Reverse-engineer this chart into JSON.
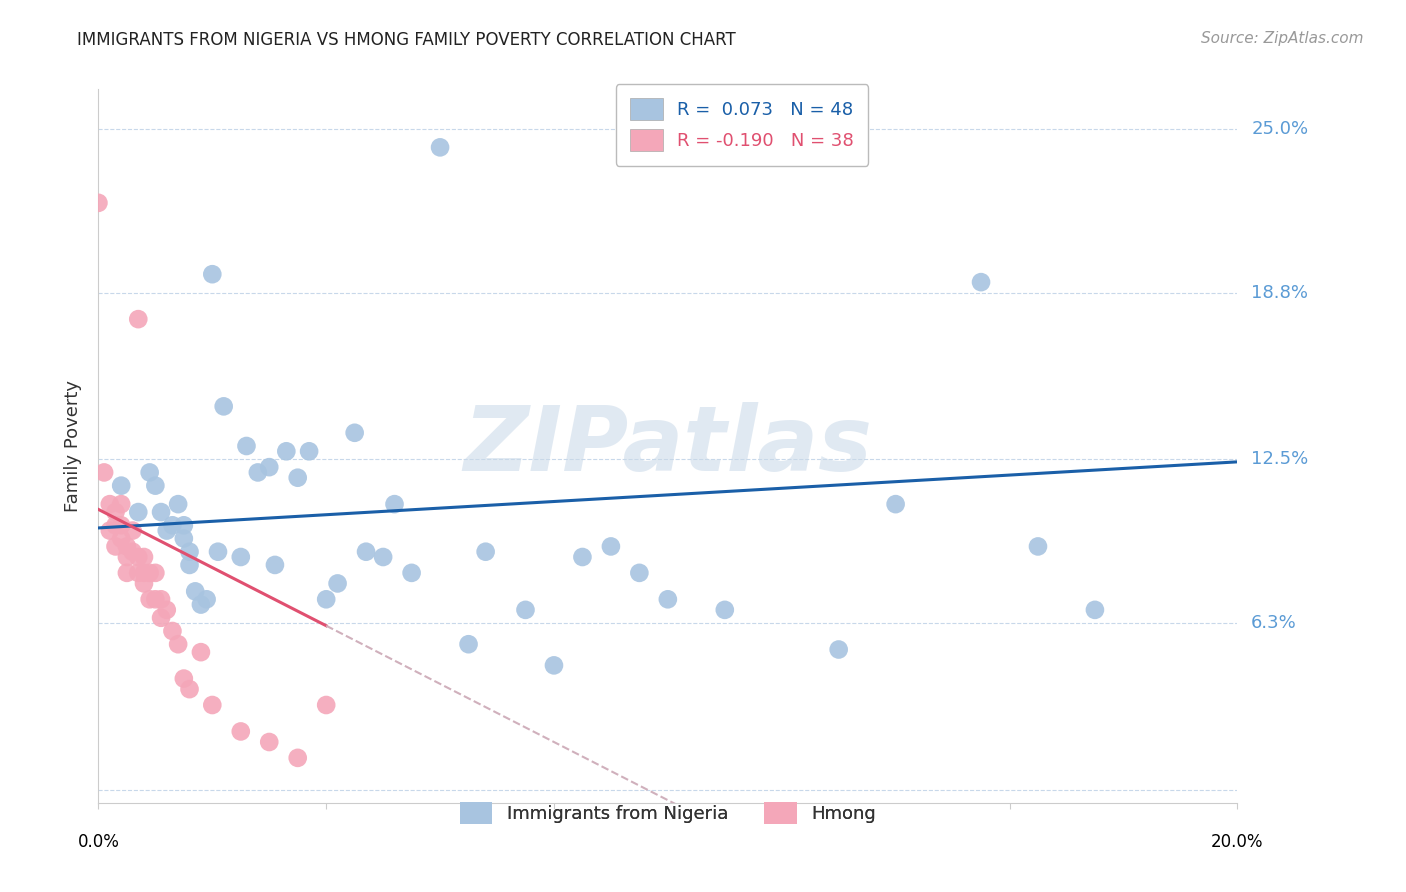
{
  "title": "IMMIGRANTS FROM NIGERIA VS HMONG FAMILY POVERTY CORRELATION CHART",
  "source": "Source: ZipAtlas.com",
  "ylabel": "Family Poverty",
  "y_ticks": [
    0.0,
    0.063,
    0.125,
    0.188,
    0.25
  ],
  "y_tick_labels": [
    "",
    "6.3%",
    "12.5%",
    "18.8%",
    "25.0%"
  ],
  "x_range": [
    0.0,
    0.2
  ],
  "y_range": [
    -0.005,
    0.265
  ],
  "nigeria_R": 0.073,
  "nigeria_N": 48,
  "hmong_R": -0.19,
  "hmong_N": 38,
  "nigeria_color": "#a8c4e0",
  "hmong_color": "#f4a7b9",
  "nigeria_line_color": "#1a5fa8",
  "hmong_line_color": "#e05070",
  "hmong_dashed_color": "#d0b0bc",
  "watermark": "ZIPatlas",
  "legend_nigeria": "Immigrants from Nigeria",
  "legend_hmong": "Hmong",
  "nigeria_x": [
    0.004,
    0.007,
    0.009,
    0.01,
    0.011,
    0.012,
    0.013,
    0.014,
    0.015,
    0.015,
    0.016,
    0.016,
    0.017,
    0.018,
    0.019,
    0.02,
    0.021,
    0.022,
    0.025,
    0.026,
    0.028,
    0.03,
    0.031,
    0.033,
    0.035,
    0.037,
    0.04,
    0.042,
    0.045,
    0.047,
    0.05,
    0.052,
    0.055,
    0.06,
    0.065,
    0.068,
    0.075,
    0.08,
    0.085,
    0.09,
    0.095,
    0.1,
    0.11,
    0.13,
    0.14,
    0.155,
    0.165,
    0.175
  ],
  "nigeria_y": [
    0.115,
    0.105,
    0.12,
    0.115,
    0.105,
    0.098,
    0.1,
    0.108,
    0.095,
    0.1,
    0.09,
    0.085,
    0.075,
    0.07,
    0.072,
    0.195,
    0.09,
    0.145,
    0.088,
    0.13,
    0.12,
    0.122,
    0.085,
    0.128,
    0.118,
    0.128,
    0.072,
    0.078,
    0.135,
    0.09,
    0.088,
    0.108,
    0.082,
    0.243,
    0.055,
    0.09,
    0.068,
    0.047,
    0.088,
    0.092,
    0.082,
    0.072,
    0.068,
    0.053,
    0.108,
    0.192,
    0.092,
    0.068
  ],
  "hmong_x": [
    0.0,
    0.001,
    0.002,
    0.002,
    0.003,
    0.003,
    0.003,
    0.004,
    0.004,
    0.004,
    0.005,
    0.005,
    0.005,
    0.006,
    0.006,
    0.007,
    0.007,
    0.007,
    0.008,
    0.008,
    0.008,
    0.009,
    0.009,
    0.01,
    0.01,
    0.011,
    0.011,
    0.012,
    0.013,
    0.014,
    0.015,
    0.016,
    0.018,
    0.02,
    0.025,
    0.03,
    0.035,
    0.04
  ],
  "hmong_y": [
    0.222,
    0.12,
    0.108,
    0.098,
    0.105,
    0.1,
    0.092,
    0.108,
    0.1,
    0.095,
    0.092,
    0.088,
    0.082,
    0.098,
    0.09,
    0.088,
    0.082,
    0.178,
    0.088,
    0.082,
    0.078,
    0.082,
    0.072,
    0.072,
    0.082,
    0.072,
    0.065,
    0.068,
    0.06,
    0.055,
    0.042,
    0.038,
    0.052,
    0.032,
    0.022,
    0.018,
    0.012,
    0.032
  ]
}
